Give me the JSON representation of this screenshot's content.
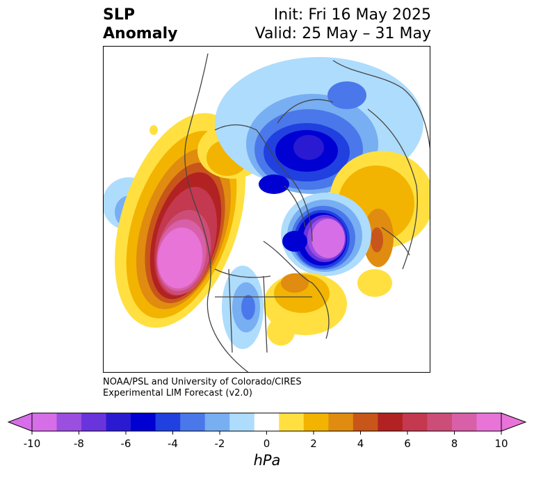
{
  "title": {
    "left_line1": "SLP",
    "left_line2": "Anomaly",
    "init": "Init: Fri 16 May 2025",
    "valid": "Valid: 25 May – 31 May"
  },
  "credit": {
    "line1": "NOAA/PSL and University of Colorado/CIRES",
    "line2": "Experimental LIM Forecast (v2.0)"
  },
  "colorbar": {
    "unit": "hPa",
    "ticks": [
      "-10",
      "-8",
      "-6",
      "-4",
      "-2",
      "0",
      "2",
      "4",
      "6",
      "8",
      "10"
    ],
    "colors": [
      "#d66ee8",
      "#9b4fe0",
      "#6a34dc",
      "#2a1ad2",
      "#0000d2",
      "#2040e0",
      "#4a78ea",
      "#78aef2",
      "#aedcfc",
      "#ffffff",
      "#ffe040",
      "#f2b400",
      "#e08c10",
      "#c8561a",
      "#b22222",
      "#c43850",
      "#cc4e78",
      "#d860a8",
      "#e874d8"
    ],
    "under_color": "#d66ee8",
    "over_color": "#e874d8"
  },
  "anomalies": [
    {
      "name": "east-pacific-high",
      "sign": "positive",
      "peak_hpa": 10
    },
    {
      "name": "north-atlantic-low",
      "sign": "negative",
      "peak_hpa": -10
    },
    {
      "name": "arctic-low",
      "sign": "negative",
      "peak_hpa": -7
    }
  ]
}
